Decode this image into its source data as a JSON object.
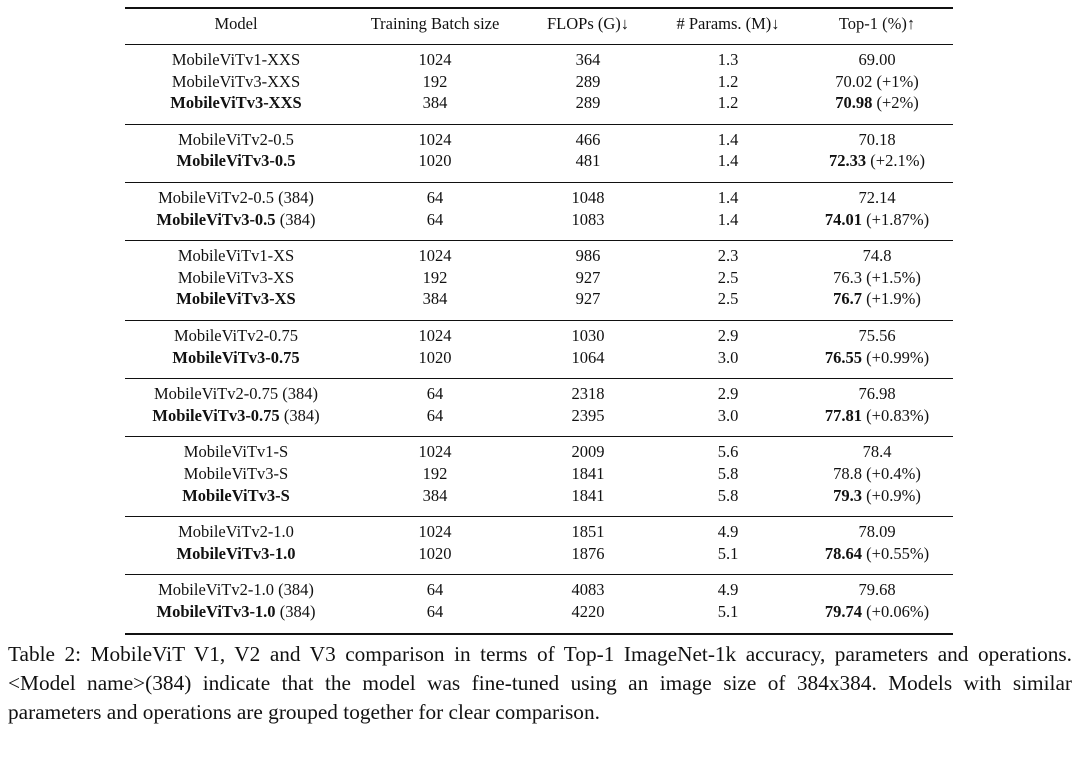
{
  "table": {
    "header": [
      "Model",
      "Training Batch size",
      "FLOPs (G)↓",
      "# Params. (M)↓",
      "Top-1 (%)↑"
    ],
    "groups": [
      [
        {
          "model": {
            "name": "MobileViTv1-XXS"
          },
          "batch": "1024",
          "flops": "364",
          "params": "1.3",
          "top1": {
            "value": "69.00"
          }
        },
        {
          "model": {
            "name": "MobileViTv3-XXS"
          },
          "batch": "192",
          "flops": "289",
          "params": "1.2",
          "top1": {
            "value": "70.02",
            "delta": "(+1%)"
          }
        },
        {
          "bold": true,
          "model": {
            "name": "MobileViTv3-XXS"
          },
          "batch": "384",
          "flops": "289",
          "params": "1.2",
          "top1": {
            "value": "70.98",
            "delta": "(+2%)"
          }
        }
      ],
      [
        {
          "model": {
            "name": "MobileViTv2-0.5"
          },
          "batch": "1024",
          "flops": "466",
          "params": "1.4",
          "top1": {
            "value": "70.18"
          }
        },
        {
          "bold": true,
          "model": {
            "name": "MobileViTv3-0.5"
          },
          "batch": "1020",
          "flops": "481",
          "params": "1.4",
          "top1": {
            "value": "72.33",
            "delta": "(+2.1%)"
          }
        }
      ],
      [
        {
          "model": {
            "name": "MobileViTv2-0.5",
            "suffix": "(384)"
          },
          "batch": "64",
          "flops": "1048",
          "params": "1.4",
          "top1": {
            "value": "72.14"
          }
        },
        {
          "bold": true,
          "model": {
            "name": "MobileViTv3-0.5",
            "suffix": "(384)"
          },
          "batch": "64",
          "flops": "1083",
          "params": "1.4",
          "top1": {
            "value": "74.01",
            "delta": "(+1.87%)"
          }
        }
      ],
      [
        {
          "model": {
            "name": "MobileViTv1-XS"
          },
          "batch": "1024",
          "flops": "986",
          "params": "2.3",
          "top1": {
            "value": "74.8"
          }
        },
        {
          "model": {
            "name": "MobileViTv3-XS"
          },
          "batch": "192",
          "flops": "927",
          "params": "2.5",
          "top1": {
            "value": "76.3",
            "delta": "(+1.5%)"
          }
        },
        {
          "bold": true,
          "model": {
            "name": "MobileViTv3-XS"
          },
          "batch": "384",
          "flops": "927",
          "params": "2.5",
          "top1": {
            "value": "76.7",
            "delta": "(+1.9%)"
          }
        }
      ],
      [
        {
          "model": {
            "name": "MobileViTv2-0.75"
          },
          "batch": "1024",
          "flops": "1030",
          "params": "2.9",
          "top1": {
            "value": "75.56"
          }
        },
        {
          "bold": true,
          "model": {
            "name": "MobileViTv3-0.75"
          },
          "batch": "1020",
          "flops": "1064",
          "params": "3.0",
          "top1": {
            "value": "76.55",
            "delta": "(+0.99%)"
          }
        }
      ],
      [
        {
          "model": {
            "name": "MobileViTv2-0.75",
            "suffix": "(384)"
          },
          "batch": "64",
          "flops": "2318",
          "params": "2.9",
          "top1": {
            "value": "76.98"
          }
        },
        {
          "bold": true,
          "model": {
            "name": "MobileViTv3-0.75",
            "suffix": "(384)"
          },
          "batch": "64",
          "flops": "2395",
          "params": "3.0",
          "top1": {
            "value": "77.81",
            "delta": "(+0.83%)"
          }
        }
      ],
      [
        {
          "model": {
            "name": "MobileViTv1-S"
          },
          "batch": "1024",
          "flops": "2009",
          "params": "5.6",
          "top1": {
            "value": "78.4"
          }
        },
        {
          "model": {
            "name": "MobileViTv3-S"
          },
          "batch": "192",
          "flops": "1841",
          "params": "5.8",
          "top1": {
            "value": "78.8",
            "delta": "(+0.4%)"
          }
        },
        {
          "bold": true,
          "model": {
            "name": "MobileViTv3-S"
          },
          "batch": "384",
          "flops": "1841",
          "params": "5.8",
          "top1": {
            "value": "79.3",
            "delta": "(+0.9%)"
          }
        }
      ],
      [
        {
          "model": {
            "name": "MobileViTv2-1.0"
          },
          "batch": "1024",
          "flops": "1851",
          "params": "4.9",
          "top1": {
            "value": "78.09"
          }
        },
        {
          "bold": true,
          "model": {
            "name": "MobileViTv3-1.0"
          },
          "batch": "1020",
          "flops": "1876",
          "params": "5.1",
          "top1": {
            "value": "78.64",
            "delta": "(+0.55%)"
          }
        }
      ],
      [
        {
          "model": {
            "name": "MobileViTv2-1.0",
            "suffix": "(384)"
          },
          "batch": "64",
          "flops": "4083",
          "params": "4.9",
          "top1": {
            "value": "79.68"
          }
        },
        {
          "bold": true,
          "model": {
            "name": "MobileViTv3-1.0",
            "suffix": "(384)"
          },
          "batch": "64",
          "flops": "4220",
          "params": "5.1",
          "top1": {
            "value": "79.74",
            "delta": "(+0.06%)"
          }
        }
      ]
    ]
  },
  "caption": "Table 2: MobileViT V1, V2 and V3 comparison in terms of Top-1 ImageNet-1k accuracy, parameters and operations. <Model name>(384) indicate that the model was fine-tuned using an image size of 384x384. Models with similar parameters and operations are grouped together for clear comparison."
}
